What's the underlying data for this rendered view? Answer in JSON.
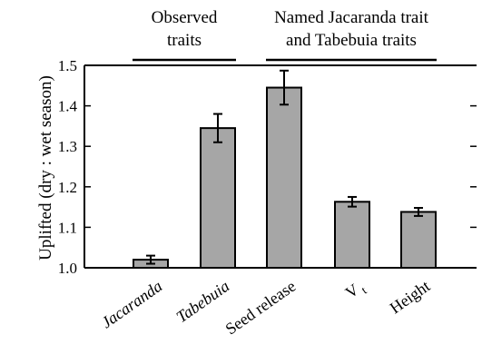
{
  "chart_data": {
    "type": "bar",
    "ylabel": "Uplifted (dry : wet season)",
    "ylim": [
      1.0,
      1.5
    ],
    "yticks": [
      "1.0",
      "1.1",
      "1.2",
      "1.3",
      "1.4",
      "1.5"
    ],
    "grid": false,
    "categories": [
      {
        "label": "Jacaranda",
        "italic": true
      },
      {
        "label": "Tabebuia",
        "italic": true
      },
      {
        "label": "Seed release",
        "italic": false
      },
      {
        "label": "V",
        "subscript": "t",
        "italic": false
      },
      {
        "label": "Height",
        "italic": false
      }
    ],
    "values": [
      1.02,
      1.345,
      1.445,
      1.163,
      1.138
    ],
    "errors": [
      0.01,
      0.035,
      0.042,
      0.012,
      0.01
    ],
    "bar_color": "#a6a6a6",
    "groups": [
      {
        "label_lines": [
          "Observed",
          "traits"
        ],
        "categories": [
          0,
          1
        ]
      },
      {
        "label_lines": [
          "Named Jacaranda trait",
          "and Tabebuia traits"
        ],
        "categories": [
          2,
          3,
          4
        ]
      }
    ]
  }
}
